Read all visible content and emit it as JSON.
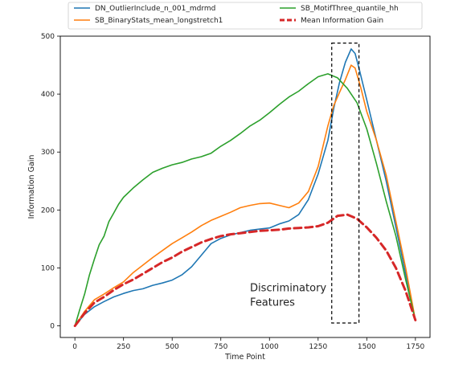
{
  "chart_data": {
    "type": "line",
    "xlabel": "Time Point",
    "ylabel": "Information Gain",
    "xlim": [
      -75,
      1825
    ],
    "ylim": [
      -20,
      500
    ],
    "xticks": [
      0,
      250,
      500,
      750,
      1000,
      1250,
      1500,
      1750
    ],
    "yticks": [
      0,
      100,
      200,
      300,
      400,
      500
    ],
    "grid": false,
    "legend_placement": "top, above plot, two columns",
    "series": [
      {
        "name": "DN_OutlierInclude_n_001_mdrmd",
        "color": "#1f77b4",
        "style": "solid",
        "x": [
          0,
          50,
          100,
          150,
          200,
          250,
          300,
          350,
          400,
          450,
          500,
          550,
          600,
          650,
          700,
          750,
          800,
          850,
          900,
          950,
          1000,
          1050,
          1100,
          1150,
          1200,
          1250,
          1300,
          1330,
          1360,
          1390,
          1420,
          1440,
          1460,
          1500,
          1550,
          1600,
          1650,
          1700,
          1750
        ],
        "y": [
          0,
          20,
          33,
          42,
          50,
          56,
          61,
          64,
          70,
          74,
          79,
          88,
          102,
          122,
          142,
          151,
          157,
          161,
          165,
          167,
          169,
          176,
          181,
          192,
          218,
          262,
          320,
          375,
          420,
          455,
          478,
          470,
          445,
          390,
          320,
          250,
          170,
          90,
          10
        ]
      },
      {
        "name": "SB_BinaryStats_mean_longstretch1",
        "color": "#ff7f0e",
        "style": "solid",
        "x": [
          0,
          50,
          100,
          150,
          200,
          250,
          300,
          350,
          400,
          450,
          500,
          550,
          600,
          650,
          700,
          750,
          800,
          850,
          900,
          950,
          1000,
          1050,
          1100,
          1150,
          1200,
          1250,
          1300,
          1330,
          1360,
          1390,
          1420,
          1440,
          1470,
          1500,
          1550,
          1600,
          1650,
          1700,
          1750
        ],
        "y": [
          0,
          25,
          45,
          55,
          66,
          76,
          92,
          105,
          118,
          130,
          142,
          152,
          162,
          173,
          182,
          189,
          196,
          204,
          208,
          211,
          212,
          208,
          204,
          212,
          232,
          275,
          345,
          380,
          403,
          425,
          450,
          445,
          410,
          370,
          320,
          260,
          180,
          100,
          10
        ]
      },
      {
        "name": "SB_MotifThree_quantile_hh",
        "color": "#2ca02c",
        "style": "solid",
        "x": [
          0,
          25,
          50,
          75,
          100,
          125,
          150,
          175,
          200,
          225,
          250,
          300,
          350,
          400,
          450,
          500,
          550,
          600,
          650,
          700,
          750,
          800,
          850,
          900,
          950,
          1000,
          1050,
          1100,
          1150,
          1200,
          1250,
          1300,
          1350,
          1400,
          1450,
          1500,
          1550,
          1600,
          1650,
          1700,
          1750
        ],
        "y": [
          0,
          28,
          55,
          88,
          115,
          140,
          155,
          180,
          195,
          210,
          222,
          238,
          252,
          265,
          272,
          278,
          282,
          288,
          292,
          298,
          310,
          320,
          332,
          345,
          355,
          368,
          382,
          395,
          405,
          418,
          430,
          435,
          428,
          410,
          385,
          340,
          280,
          215,
          155,
          80,
          10
        ]
      },
      {
        "name": "Mean Information Gain",
        "color": "#d62728",
        "style": "dashed",
        "x": [
          0,
          50,
          100,
          150,
          200,
          250,
          300,
          350,
          400,
          450,
          500,
          550,
          600,
          650,
          700,
          750,
          800,
          850,
          900,
          950,
          1000,
          1050,
          1100,
          1150,
          1200,
          1250,
          1300,
          1350,
          1400,
          1450,
          1500,
          1550,
          1600,
          1650,
          1700,
          1750
        ],
        "y": [
          0,
          22,
          40,
          50,
          62,
          72,
          80,
          90,
          100,
          110,
          118,
          128,
          136,
          144,
          150,
          155,
          158,
          160,
          162,
          164,
          165,
          166,
          168,
          169,
          170,
          172,
          178,
          190,
          192,
          185,
          170,
          152,
          130,
          100,
          60,
          10
        ]
      }
    ],
    "annotations": [
      {
        "text_lines": [
          "Discriminatory",
          "Features"
        ],
        "x": 900,
        "y": 60,
        "box_x_range": [
          1320,
          1460
        ],
        "box_y_range": [
          5,
          488
        ]
      }
    ]
  }
}
